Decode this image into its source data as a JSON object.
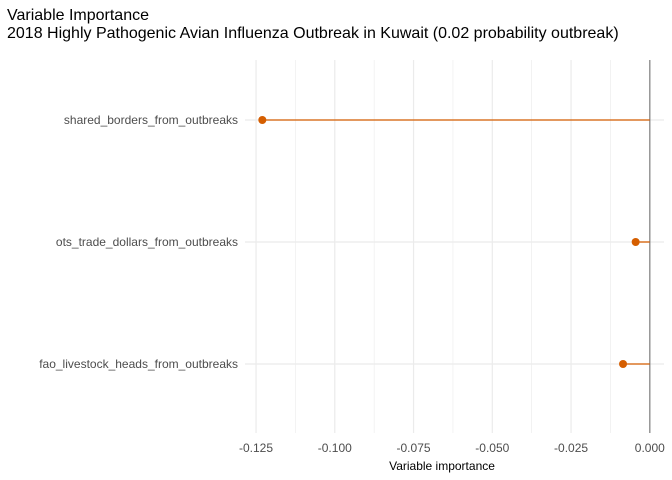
{
  "chart_data": {
    "type": "lollipop",
    "title": "Variable Importance",
    "subtitle": "2018 Highly Pathogenic Avian Influenza Outbreak in Kuwait (0.02 probability outbreak)",
    "xlabel": "Variable importance",
    "ylabel": "",
    "categories": [
      "shared_borders_from_outbreaks",
      "ots_trade_dollars_from_outbreaks",
      "fao_livestock_heads_from_outbreaks"
    ],
    "values": [
      -0.123,
      -0.0045,
      -0.0085
    ],
    "xlim": [
      -0.1285,
      0.0045
    ],
    "xticks": [
      -0.125,
      -0.1,
      -0.075,
      -0.05,
      -0.025,
      0.0
    ],
    "xtick_labels": [
      "-0.125",
      "-0.100",
      "-0.075",
      "-0.050",
      "-0.025",
      "0.000"
    ],
    "grid": true,
    "legend": "none",
    "colors": {
      "series": "#d55e00",
      "reference_line": "#7f7f7f",
      "grid": "#ebebeb"
    }
  }
}
